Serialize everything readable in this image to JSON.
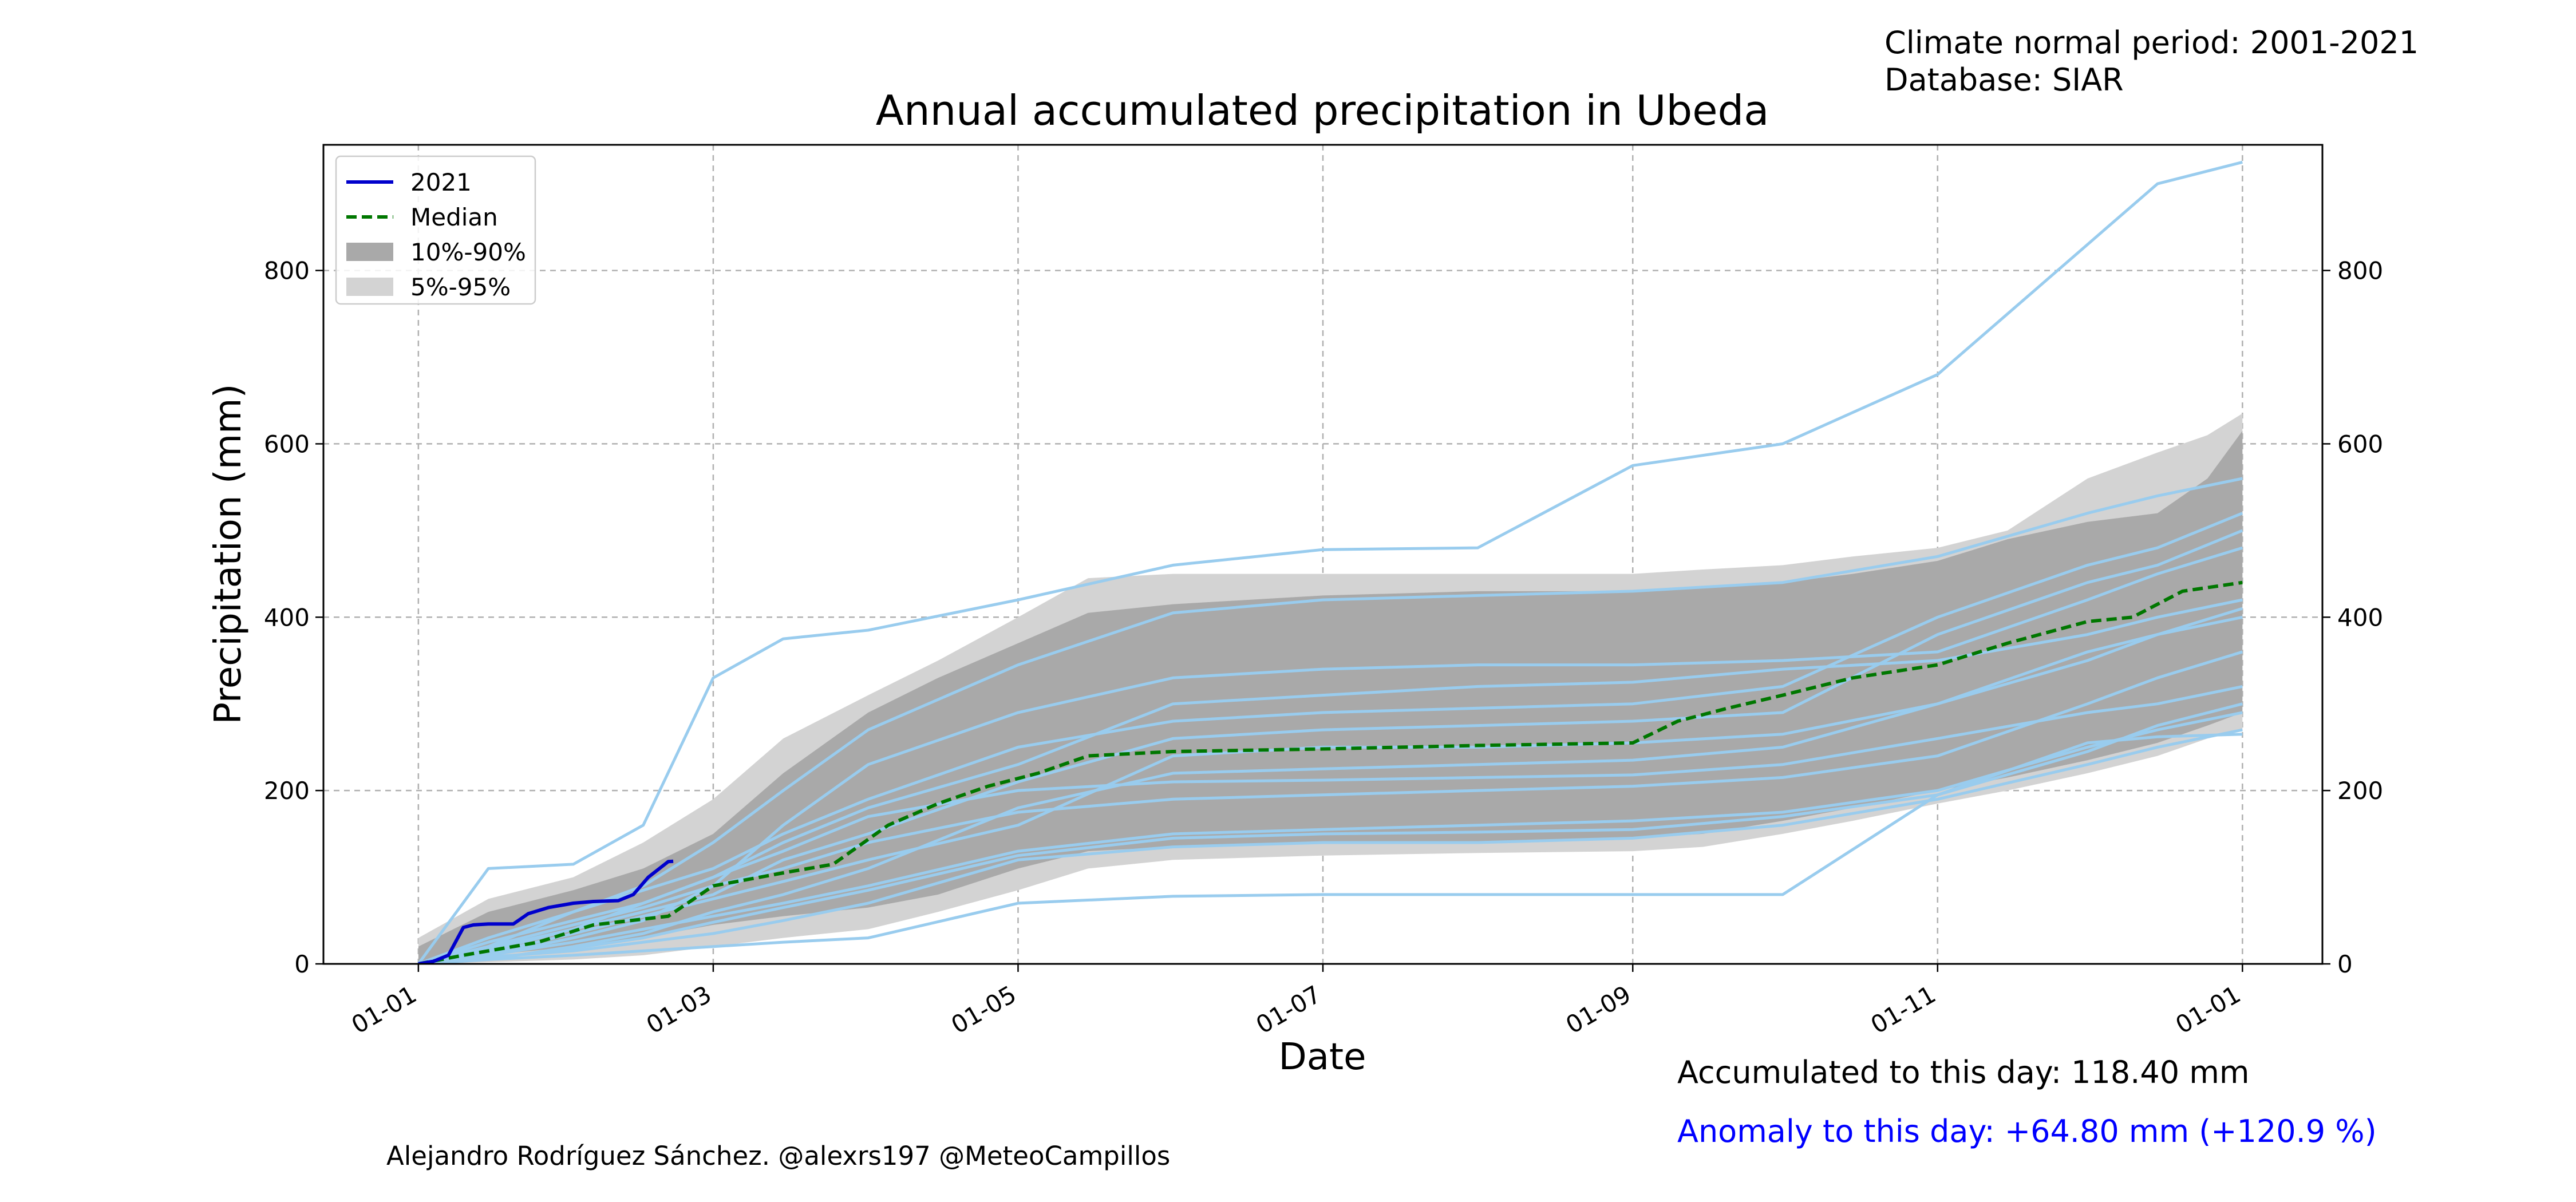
{
  "chart_data": {
    "type": "line",
    "title": "Annual accumulated precipitation in Ubeda",
    "xlabel": "Date",
    "ylabel": "Precipitation (mm)",
    "xlim": [
      "2020-12-13",
      "2022-01-17"
    ],
    "ylim": [
      0,
      945
    ],
    "x_ticks": [
      {
        "date": "2021-01-01",
        "label": "01-01"
      },
      {
        "date": "2021-03-01",
        "label": "01-03"
      },
      {
        "date": "2021-05-01",
        "label": "01-05"
      },
      {
        "date": "2021-07-01",
        "label": "01-07"
      },
      {
        "date": "2021-09-01",
        "label": "01-09"
      },
      {
        "date": "2021-11-01",
        "label": "01-11"
      },
      {
        "date": "2022-01-01",
        "label": "01-01"
      }
    ],
    "y_ticks": [
      0,
      200,
      400,
      600,
      800
    ],
    "grid": true,
    "legend_position": "top-left",
    "legend": [
      {
        "label": "2021",
        "kind": "line",
        "color": "#0000cc"
      },
      {
        "label": "Median",
        "kind": "dashed",
        "color": "#007700"
      },
      {
        "label": "10%-90%",
        "kind": "patch",
        "color": "#a9a9a9"
      },
      {
        "label": "5%-95%",
        "kind": "patch",
        "color": "#d3d3d3"
      }
    ],
    "colors": {
      "current": "#0000cc",
      "median": "#007700",
      "band_10_90": "#a9a9a9",
      "band_5_95": "#d3d3d3",
      "historical": "#99ccee"
    },
    "band_5_95": {
      "dates": [
        "2021-01-01",
        "2021-01-15",
        "2021-02-01",
        "2021-02-15",
        "2021-03-01",
        "2021-03-15",
        "2021-04-01",
        "2021-04-15",
        "2021-05-01",
        "2021-05-15",
        "2021-06-01",
        "2021-07-01",
        "2021-08-01",
        "2021-09-01",
        "2021-09-15",
        "2021-10-01",
        "2021-10-15",
        "2021-11-01",
        "2021-11-15",
        "2021-12-01",
        "2021-12-15",
        "2021-12-25",
        "2022-01-01"
      ],
      "low": [
        0,
        2,
        5,
        10,
        20,
        30,
        40,
        60,
        85,
        110,
        120,
        125,
        128,
        130,
        135,
        150,
        165,
        185,
        200,
        220,
        240,
        260,
        270
      ],
      "high": [
        30,
        75,
        100,
        140,
        190,
        260,
        310,
        350,
        400,
        445,
        450,
        450,
        450,
        450,
        455,
        460,
        470,
        480,
        500,
        560,
        590,
        610,
        635
      ]
    },
    "band_10_90": {
      "dates": [
        "2021-01-01",
        "2021-01-15",
        "2021-02-01",
        "2021-02-15",
        "2021-03-01",
        "2021-03-15",
        "2021-04-01",
        "2021-04-15",
        "2021-05-01",
        "2021-05-15",
        "2021-06-01",
        "2021-07-01",
        "2021-08-01",
        "2021-09-01",
        "2021-09-15",
        "2021-10-01",
        "2021-10-15",
        "2021-11-01",
        "2021-11-15",
        "2021-12-01",
        "2021-12-15",
        "2021-12-25",
        "2022-01-01"
      ],
      "low": [
        3,
        10,
        20,
        30,
        45,
        55,
        65,
        80,
        110,
        130,
        135,
        140,
        140,
        145,
        150,
        165,
        180,
        200,
        215,
        235,
        255,
        275,
        290
      ],
      "high": [
        20,
        60,
        85,
        110,
        150,
        220,
        290,
        330,
        370,
        405,
        415,
        425,
        430,
        430,
        435,
        440,
        450,
        465,
        490,
        510,
        520,
        560,
        615
      ]
    },
    "series": [
      {
        "name": "2021",
        "kind": "current",
        "dates": [
          "2021-01-01",
          "2021-01-04",
          "2021-01-07",
          "2021-01-10",
          "2021-01-12",
          "2021-01-15",
          "2021-01-20",
          "2021-01-23",
          "2021-01-27",
          "2021-02-01",
          "2021-02-05",
          "2021-02-10",
          "2021-02-13",
          "2021-02-16",
          "2021-02-20",
          "2021-02-21"
        ],
        "values": [
          0,
          3,
          10,
          42,
          45,
          46,
          46,
          58,
          65,
          70,
          72,
          73,
          80,
          100,
          118,
          118.4
        ]
      },
      {
        "name": "Median",
        "kind": "median",
        "dates": [
          "2021-01-01",
          "2021-01-10",
          "2021-01-25",
          "2021-02-05",
          "2021-02-20",
          "2021-03-01",
          "2021-03-15",
          "2021-03-25",
          "2021-04-05",
          "2021-04-15",
          "2021-04-25",
          "2021-05-05",
          "2021-05-15",
          "2021-06-01",
          "2021-07-01",
          "2021-08-01",
          "2021-09-01",
          "2021-09-10",
          "2021-09-20",
          "2021-10-01",
          "2021-10-15",
          "2021-11-01",
          "2021-11-15",
          "2021-12-01",
          "2021-12-10",
          "2021-12-20",
          "2022-01-01"
        ],
        "values": [
          0,
          10,
          25,
          45,
          55,
          90,
          105,
          115,
          160,
          185,
          205,
          220,
          240,
          245,
          248,
          252,
          255,
          280,
          295,
          310,
          330,
          345,
          370,
          395,
          400,
          430,
          440
        ]
      },
      {
        "name": "",
        "kind": "historical",
        "dates": [
          "2021-01-01",
          "2021-01-15",
          "2021-02-01",
          "2021-02-15",
          "2021-03-01",
          "2021-03-15",
          "2021-04-01",
          "2021-05-01",
          "2021-06-01",
          "2021-07-01",
          "2021-08-01",
          "2021-09-01",
          "2021-10-01",
          "2021-11-01",
          "2021-12-01",
          "2021-12-15",
          "2022-01-01"
        ],
        "values": [
          0,
          110,
          115,
          160,
          330,
          375,
          385,
          420,
          460,
          478,
          480,
          575,
          600,
          680,
          830,
          900,
          925
        ]
      },
      {
        "name": "",
        "kind": "historical",
        "dates": [
          "2021-01-01",
          "2021-01-15",
          "2021-02-01",
          "2021-02-15",
          "2021-03-01",
          "2021-03-15",
          "2021-04-01",
          "2021-05-01",
          "2021-06-01",
          "2021-07-01",
          "2021-08-01",
          "2021-09-01",
          "2021-10-01",
          "2021-11-01",
          "2021-12-01",
          "2021-12-15",
          "2022-01-01"
        ],
        "values": [
          0,
          5,
          10,
          15,
          20,
          25,
          30,
          70,
          78,
          80,
          80,
          80,
          80,
          195,
          255,
          262,
          265
        ]
      },
      {
        "name": "",
        "kind": "historical",
        "dates": [
          "2021-01-01",
          "2021-01-15",
          "2021-02-01",
          "2021-02-15",
          "2021-03-01",
          "2021-03-15",
          "2021-04-01",
          "2021-05-01",
          "2021-06-01",
          "2021-07-01",
          "2021-08-01",
          "2021-09-01",
          "2021-10-01",
          "2021-11-01",
          "2021-12-01",
          "2021-12-15",
          "2022-01-01"
        ],
        "values": [
          0,
          20,
          60,
          90,
          140,
          200,
          270,
          345,
          405,
          420,
          425,
          430,
          440,
          470,
          520,
          540,
          560
        ]
      },
      {
        "name": "",
        "kind": "historical",
        "dates": [
          "2021-01-01",
          "2021-01-15",
          "2021-02-01",
          "2021-02-15",
          "2021-03-01",
          "2021-03-15",
          "2021-04-01",
          "2021-05-01",
          "2021-06-01",
          "2021-07-01",
          "2021-08-01",
          "2021-09-01",
          "2021-10-01",
          "2021-11-01",
          "2021-12-01",
          "2021-12-15",
          "2022-01-01"
        ],
        "values": [
          0,
          10,
          30,
          50,
          90,
          160,
          230,
          290,
          330,
          340,
          345,
          345,
          350,
          360,
          420,
          450,
          480
        ]
      },
      {
        "name": "",
        "kind": "historical",
        "dates": [
          "2021-01-01",
          "2021-01-15",
          "2021-02-01",
          "2021-02-15",
          "2021-03-01",
          "2021-03-15",
          "2021-04-01",
          "2021-05-01",
          "2021-06-01",
          "2021-07-01",
          "2021-08-01",
          "2021-09-01",
          "2021-10-01",
          "2021-11-01",
          "2021-12-01",
          "2021-12-15",
          "2022-01-01"
        ],
        "values": [
          0,
          15,
          40,
          60,
          80,
          120,
          150,
          210,
          260,
          270,
          275,
          280,
          290,
          380,
          440,
          460,
          500
        ]
      },
      {
        "name": "",
        "kind": "historical",
        "dates": [
          "2021-01-01",
          "2021-01-15",
          "2021-02-01",
          "2021-02-15",
          "2021-03-01",
          "2021-03-15",
          "2021-04-01",
          "2021-05-01",
          "2021-06-01",
          "2021-07-01",
          "2021-08-01",
          "2021-09-01",
          "2021-10-01",
          "2021-11-01",
          "2021-12-01",
          "2021-12-15",
          "2022-01-01"
        ],
        "values": [
          0,
          5,
          20,
          35,
          60,
          80,
          110,
          180,
          220,
          225,
          230,
          235,
          250,
          300,
          350,
          380,
          400
        ]
      },
      {
        "name": "",
        "kind": "historical",
        "dates": [
          "2021-01-01",
          "2021-01-15",
          "2021-02-01",
          "2021-02-15",
          "2021-03-01",
          "2021-03-15",
          "2021-04-01",
          "2021-05-01",
          "2021-06-01",
          "2021-07-01",
          "2021-08-01",
          "2021-09-01",
          "2021-10-01",
          "2021-11-01",
          "2021-12-01",
          "2021-12-15",
          "2022-01-01"
        ],
        "values": [
          0,
          25,
          50,
          70,
          100,
          130,
          170,
          200,
          210,
          212,
          215,
          218,
          230,
          260,
          290,
          300,
          320
        ]
      },
      {
        "name": "",
        "kind": "historical",
        "dates": [
          "2021-01-01",
          "2021-01-15",
          "2021-02-01",
          "2021-02-15",
          "2021-03-01",
          "2021-03-15",
          "2021-04-01",
          "2021-05-01",
          "2021-06-01",
          "2021-07-01",
          "2021-08-01",
          "2021-09-01",
          "2021-10-01",
          "2021-11-01",
          "2021-12-01",
          "2021-12-15",
          "2022-01-01"
        ],
        "values": [
          0,
          10,
          25,
          40,
          55,
          70,
          90,
          130,
          150,
          155,
          160,
          165,
          175,
          200,
          250,
          270,
          290
        ]
      },
      {
        "name": "",
        "kind": "historical",
        "dates": [
          "2021-01-01",
          "2021-01-15",
          "2021-02-01",
          "2021-02-15",
          "2021-03-01",
          "2021-03-15",
          "2021-04-01",
          "2021-05-01",
          "2021-06-01",
          "2021-07-01",
          "2021-08-01",
          "2021-09-01",
          "2021-10-01",
          "2021-11-01",
          "2021-12-01",
          "2021-12-15",
          "2022-01-01"
        ],
        "values": [
          0,
          30,
          60,
          85,
          110,
          150,
          190,
          250,
          280,
          290,
          295,
          300,
          320,
          400,
          460,
          480,
          520
        ]
      },
      {
        "name": "",
        "kind": "historical",
        "dates": [
          "2021-01-01",
          "2021-01-15",
          "2021-02-01",
          "2021-02-15",
          "2021-03-01",
          "2021-03-15",
          "2021-04-01",
          "2021-05-01",
          "2021-06-01",
          "2021-07-01",
          "2021-08-01",
          "2021-09-01",
          "2021-10-01",
          "2021-11-01",
          "2021-12-01",
          "2021-12-15",
          "2022-01-01"
        ],
        "values": [
          0,
          8,
          15,
          25,
          35,
          50,
          70,
          120,
          135,
          140,
          140,
          145,
          160,
          190,
          230,
          250,
          270
        ]
      },
      {
        "name": "",
        "kind": "historical",
        "dates": [
          "2021-01-01",
          "2021-01-15",
          "2021-02-01",
          "2021-02-15",
          "2021-03-01",
          "2021-03-15",
          "2021-04-01",
          "2021-05-01",
          "2021-06-01",
          "2021-07-01",
          "2021-08-01",
          "2021-09-01",
          "2021-10-01",
          "2021-11-01",
          "2021-12-01",
          "2021-12-15",
          "2022-01-01"
        ],
        "values": [
          0,
          20,
          45,
          65,
          90,
          110,
          140,
          175,
          190,
          195,
          200,
          205,
          215,
          240,
          300,
          330,
          360
        ]
      },
      {
        "name": "",
        "kind": "historical",
        "dates": [
          "2021-01-01",
          "2021-01-15",
          "2021-02-01",
          "2021-02-15",
          "2021-03-01",
          "2021-03-15",
          "2021-04-01",
          "2021-05-01",
          "2021-06-01",
          "2021-07-01",
          "2021-08-01",
          "2021-09-01",
          "2021-10-01",
          "2021-11-01",
          "2021-12-01",
          "2021-12-15",
          "2022-01-01"
        ],
        "values": [
          0,
          12,
          35,
          55,
          75,
          95,
          120,
          160,
          240,
          250,
          250,
          255,
          265,
          300,
          360,
          380,
          410
        ]
      },
      {
        "name": "",
        "kind": "historical",
        "dates": [
          "2021-01-01",
          "2021-01-15",
          "2021-02-01",
          "2021-02-15",
          "2021-03-01",
          "2021-03-15",
          "2021-04-01",
          "2021-05-01",
          "2021-06-01",
          "2021-07-01",
          "2021-08-01",
          "2021-09-01",
          "2021-10-01",
          "2021-11-01",
          "2021-12-01",
          "2021-12-15",
          "2022-01-01"
        ],
        "values": [
          0,
          18,
          40,
          70,
          100,
          140,
          180,
          230,
          300,
          310,
          320,
          325,
          340,
          350,
          380,
          400,
          420
        ]
      },
      {
        "name": "",
        "kind": "historical",
        "dates": [
          "2021-01-01",
          "2021-01-15",
          "2021-02-01",
          "2021-02-15",
          "2021-03-01",
          "2021-03-15",
          "2021-04-01",
          "2021-05-01",
          "2021-06-01",
          "2021-07-01",
          "2021-08-01",
          "2021-09-01",
          "2021-10-01",
          "2021-11-01",
          "2021-12-01",
          "2021-12-15",
          "2022-01-01"
        ],
        "values": [
          0,
          6,
          18,
          30,
          48,
          65,
          85,
          125,
          145,
          150,
          152,
          155,
          170,
          195,
          245,
          275,
          300
        ]
      }
    ]
  },
  "annotations": {
    "normal_period": "Climate normal period: 2001-2021",
    "database": "Database: SIAR",
    "accumulated": "Accumulated to this day: 118.40 mm",
    "anomaly": "Anomaly to this day: +64.80 mm (+120.9 %)",
    "credit": "Alejandro Rodríguez Sánchez. @alexrs197 @MeteoCampillos",
    "anomaly_color": "#0000ff"
  }
}
